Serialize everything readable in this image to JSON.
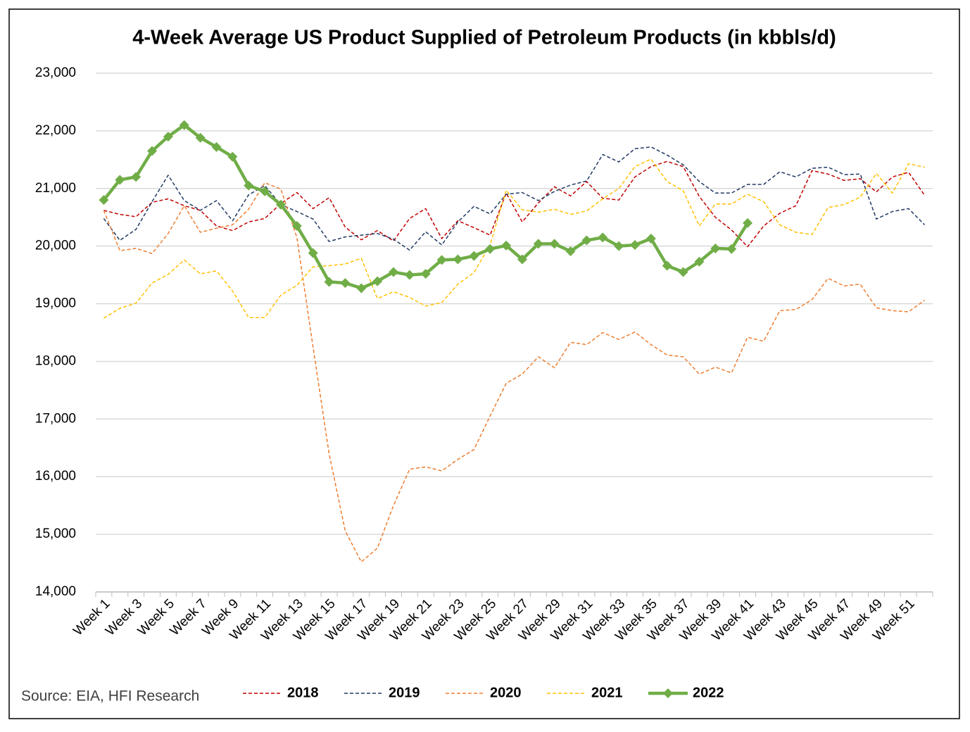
{
  "chart_data": {
    "type": "line",
    "title": "4-Week Average US Product Supplied of Petroleum Products (in kbbls/d)",
    "source": "Source: EIA, HFI Research",
    "categories": [
      "Week 1",
      null,
      "Week 3",
      null,
      "Week 5",
      null,
      "Week 7",
      null,
      "Week 9",
      null,
      "Week 11",
      null,
      "Week 13",
      null,
      "Week 15",
      null,
      "Week 17",
      null,
      "Week 19",
      null,
      "Week 21",
      null,
      "Week 23",
      null,
      "Week 25",
      null,
      "Week 27",
      null,
      "Week 29",
      null,
      "Week 31",
      null,
      "Week 33",
      null,
      "Week 35",
      null,
      "Week 37",
      null,
      "Week 39",
      null,
      "Week 41",
      null,
      "Week 43",
      null,
      "Week 45",
      null,
      "Week 47",
      null,
      "Week 49",
      null,
      "Week 51",
      null
    ],
    "ylim": [
      14000,
      23000
    ],
    "yticks": [
      {
        "value": 14000,
        "label": "14,000"
      },
      {
        "value": 15000,
        "label": "15,000"
      },
      {
        "value": 16000,
        "label": "16,000"
      },
      {
        "value": 17000,
        "label": "17,000"
      },
      {
        "value": 18000,
        "label": "18,000"
      },
      {
        "value": 19000,
        "label": "19,000"
      },
      {
        "value": 20000,
        "label": "20,000"
      },
      {
        "value": 21000,
        "label": "21,000"
      },
      {
        "value": 22000,
        "label": "22,000"
      },
      {
        "value": 23000,
        "label": "23,000"
      }
    ],
    "grid": true,
    "legend": "bottom",
    "series": [
      {
        "name": "2018",
        "color": "#c00000",
        "dashed": true,
        "values": [
          20620,
          20550,
          20510,
          20760,
          20820,
          20700,
          20620,
          20350,
          20270,
          20420,
          20480,
          20740,
          20930,
          20650,
          20840,
          20330,
          20110,
          20270,
          20090,
          20480,
          20650,
          20130,
          20440,
          20320,
          20190,
          20920,
          20420,
          20750,
          21030,
          20870,
          21120,
          20830,
          20800,
          21200,
          21380,
          21470,
          21380,
          20860,
          20500,
          20280,
          19990,
          20350,
          20570,
          20700,
          21310,
          21250,
          21140,
          21170,
          20940,
          21200,
          21280,
          20880
        ]
      },
      {
        "name": "2019",
        "color": "#203864",
        "dashed": true,
        "values": [
          20480,
          20100,
          20290,
          20770,
          21230,
          20790,
          20620,
          20790,
          20440,
          20890,
          21050,
          20720,
          20600,
          20470,
          20080,
          20160,
          20190,
          20220,
          20120,
          19930,
          20250,
          20020,
          20420,
          20690,
          20560,
          20900,
          20930,
          20790,
          20950,
          21060,
          21130,
          21590,
          21460,
          21690,
          21720,
          21580,
          21410,
          21120,
          20920,
          20920,
          21070,
          21070,
          21290,
          21200,
          21350,
          21370,
          21240,
          21250,
          20470,
          20600,
          20650,
          20370
        ]
      },
      {
        "name": "2020",
        "color": "#ed7d31",
        "dashed": true,
        "values": [
          20620,
          19920,
          19960,
          19870,
          20220,
          20700,
          20240,
          20310,
          20370,
          20640,
          21100,
          20990,
          20150,
          18250,
          16400,
          15060,
          14520,
          14760,
          15500,
          16130,
          16170,
          16100,
          16300,
          16470,
          17050,
          17620,
          17780,
          18080,
          17890,
          18330,
          18290,
          18500,
          18380,
          18510,
          18290,
          18110,
          18080,
          17780,
          17900,
          17800,
          18420,
          18350,
          18880,
          18900,
          19070,
          19440,
          19310,
          19340,
          18930,
          18880,
          18860,
          19060
        ]
      },
      {
        "name": "2021",
        "color": "#ffc000",
        "dashed": true,
        "values": [
          18750,
          18920,
          19010,
          19360,
          19510,
          19760,
          19520,
          19570,
          19220,
          18760,
          18760,
          19150,
          19320,
          19640,
          19660,
          19690,
          19790,
          19090,
          19210,
          19110,
          18960,
          19020,
          19340,
          19540,
          20020,
          20970,
          20630,
          20590,
          20640,
          20550,
          20610,
          20820,
          21000,
          21380,
          21510,
          21120,
          20960,
          20350,
          20730,
          20730,
          20900,
          20770,
          20370,
          20240,
          20200,
          20670,
          20720,
          20850,
          21260,
          20920,
          21430,
          21370
        ]
      },
      {
        "name": "2022",
        "color": "#70ad47",
        "dashed": false,
        "marker": "diamond",
        "values": [
          20800,
          21150,
          21200,
          21650,
          21900,
          22100,
          21880,
          21720,
          21550,
          21050,
          20950,
          20720,
          20350,
          19880,
          19380,
          19360,
          19270,
          19390,
          19550,
          19500,
          19520,
          19760,
          19770,
          19830,
          19950,
          20010,
          19770,
          20040,
          20040,
          19910,
          20100,
          20150,
          20000,
          20020,
          20130,
          19660,
          19550,
          19730,
          19960,
          19950,
          20400,
          null,
          null,
          null,
          null,
          null,
          null,
          null,
          null,
          null,
          null,
          null
        ]
      }
    ]
  }
}
